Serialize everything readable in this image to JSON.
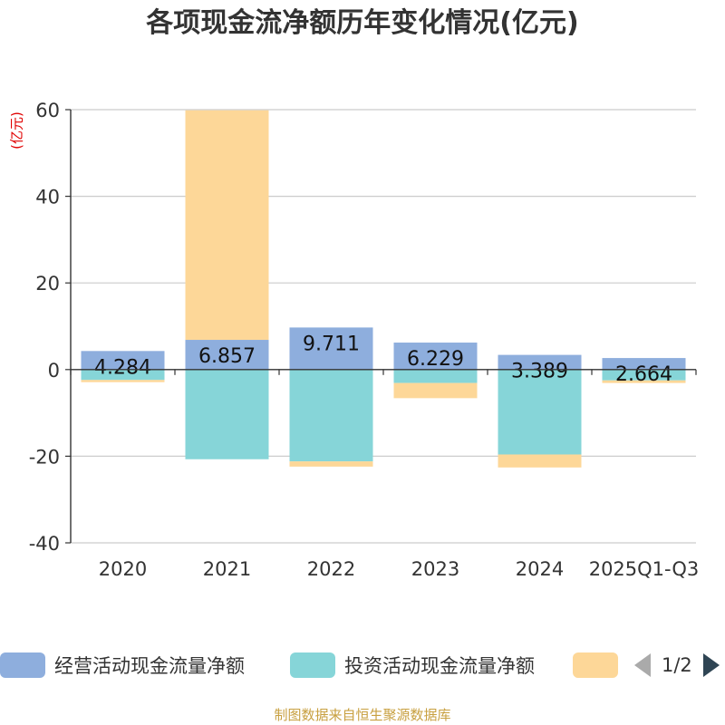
{
  "title": "各项现金流净额历年变化情况(亿元)",
  "unit_label": "(亿元)",
  "chart_data": {
    "type": "bar",
    "stacked": true,
    "categories": [
      "2020",
      "2021",
      "2022",
      "2023",
      "2024",
      "2025Q1-Q3"
    ],
    "ylim": [
      -40,
      60
    ],
    "yticks": [
      60,
      40,
      20,
      0,
      -20,
      -40
    ],
    "series": [
      {
        "name": "经营活动现金流量净额",
        "color": "#8eaedd",
        "values": [
          4.284,
          6.857,
          9.711,
          6.229,
          3.389,
          2.664
        ],
        "labels": [
          "4.284",
          "6.857",
          "9.711",
          "6.229",
          "3.389",
          "2.664"
        ]
      },
      {
        "name": "投资活动现金流量净额",
        "color": "#86d5d8",
        "values": [
          -2.4,
          -20.7,
          -21.2,
          -3.1,
          -19.6,
          -2.5
        ]
      },
      {
        "name": "",
        "color": "#fdd798",
        "values": [
          -0.5,
          53.0,
          -1.2,
          -3.5,
          -3.0,
          -0.6
        ]
      }
    ],
    "legend_position": "bottom"
  },
  "legend": {
    "items": [
      {
        "label": "经营活动现金流量净额",
        "color": "#8eaedd"
      },
      {
        "label": "投资活动现金流量净额",
        "color": "#86d5d8"
      },
      {
        "label": "",
        "color": "#fdd798"
      }
    ],
    "page": "1/2"
  },
  "source": "制图数据来自恒生聚源数据库"
}
